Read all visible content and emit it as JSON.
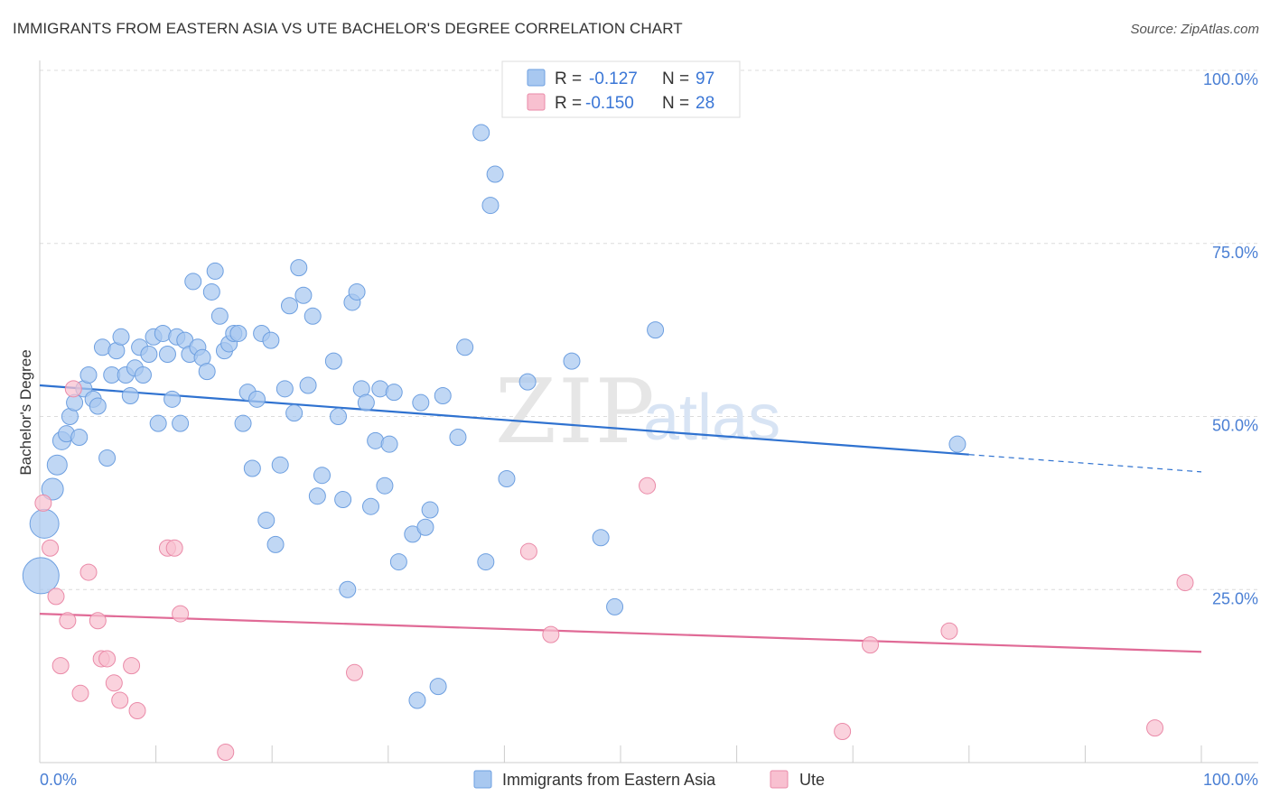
{
  "header": {
    "title": "IMMIGRANTS FROM EASTERN ASIA VS UTE BACHELOR'S DEGREE CORRELATION CHART",
    "source": "Source: ZipAtlas.com"
  },
  "watermark": {
    "zip": "ZIP",
    "atlas": "atlas"
  },
  "chart_data": {
    "type": "scatter",
    "ylabel": "Bachelor's Degree",
    "x_tick_labels": [
      "0.0%",
      "100.0%"
    ],
    "y_tick_labels": [
      "25.0%",
      "50.0%",
      "75.0%",
      "100.0%"
    ],
    "y_ticks": [
      25,
      50,
      75,
      100
    ],
    "xlim": [
      0,
      100
    ],
    "ylim": [
      0,
      100
    ],
    "grid": true,
    "legend_position": "bottom",
    "stats": [
      {
        "r_label": "R =",
        "r_value": "-0.127",
        "n_label": "N =",
        "n_value": "97"
      },
      {
        "r_label": "R =",
        "r_value": "-0.150",
        "n_label": "N =",
        "n_value": "28"
      }
    ],
    "series": [
      {
        "name": "Immigrants from Eastern Asia",
        "color": "#a8c8f0",
        "stroke": "#6d9fe0",
        "line_color": "#2f72d0",
        "trend": {
          "x0": 0,
          "y0": 54.5,
          "x1": 80,
          "y1": 44.5,
          "dash_x1": 100,
          "dash_y1": 42.0
        },
        "points": [
          [
            0.1,
            27.0,
            20
          ],
          [
            0.4,
            34.5,
            16
          ],
          [
            1.1,
            39.5,
            12
          ],
          [
            1.5,
            43.0,
            11
          ],
          [
            1.9,
            46.5,
            10
          ],
          [
            2.3,
            47.5,
            9
          ],
          [
            2.6,
            50.0,
            9
          ],
          [
            3.0,
            52.0,
            9
          ],
          [
            3.4,
            47.0,
            9
          ],
          [
            3.8,
            54.0,
            9
          ],
          [
            4.2,
            56.0,
            9
          ],
          [
            4.6,
            52.5,
            9
          ],
          [
            5.0,
            51.5,
            9
          ],
          [
            5.4,
            60.0,
            9
          ],
          [
            5.8,
            44.0,
            9
          ],
          [
            6.2,
            56.0,
            9
          ],
          [
            6.6,
            59.5,
            9
          ],
          [
            7.0,
            61.5,
            9
          ],
          [
            7.4,
            56.0,
            9
          ],
          [
            7.8,
            53.0,
            9
          ],
          [
            8.2,
            57.0,
            9
          ],
          [
            8.6,
            60.0,
            9
          ],
          [
            8.9,
            56.0,
            9
          ],
          [
            9.4,
            59.0,
            9
          ],
          [
            9.8,
            61.5,
            9
          ],
          [
            10.2,
            49.0,
            9
          ],
          [
            10.6,
            62.0,
            9
          ],
          [
            11.0,
            59.0,
            9
          ],
          [
            11.4,
            52.5,
            9
          ],
          [
            11.8,
            61.5,
            9
          ],
          [
            12.1,
            49.0,
            9
          ],
          [
            12.5,
            61.0,
            9
          ],
          [
            12.9,
            59.0,
            9
          ],
          [
            13.2,
            69.5,
            9
          ],
          [
            13.6,
            60.0,
            9
          ],
          [
            14.0,
            58.5,
            9
          ],
          [
            14.4,
            56.5,
            9
          ],
          [
            14.8,
            68.0,
            9
          ],
          [
            15.1,
            71.0,
            9
          ],
          [
            15.5,
            64.5,
            9
          ],
          [
            15.9,
            59.5,
            9
          ],
          [
            16.3,
            60.5,
            9
          ],
          [
            16.7,
            62.0,
            9
          ],
          [
            17.1,
            62.0,
            9
          ],
          [
            17.5,
            49.0,
            9
          ],
          [
            17.9,
            53.5,
            9
          ],
          [
            18.3,
            42.5,
            9
          ],
          [
            18.7,
            52.5,
            9
          ],
          [
            19.1,
            62.0,
            9
          ],
          [
            19.5,
            35.0,
            9
          ],
          [
            19.9,
            61.0,
            9
          ],
          [
            20.3,
            31.5,
            9
          ],
          [
            20.7,
            43.0,
            9
          ],
          [
            21.1,
            54.0,
            9
          ],
          [
            21.5,
            66.0,
            9
          ],
          [
            21.9,
            50.5,
            9
          ],
          [
            22.3,
            71.5,
            9
          ],
          [
            22.7,
            67.5,
            9
          ],
          [
            23.1,
            54.5,
            9
          ],
          [
            23.5,
            64.5,
            9
          ],
          [
            23.9,
            38.5,
            9
          ],
          [
            24.3,
            41.5,
            9
          ],
          [
            25.3,
            58.0,
            9
          ],
          [
            25.7,
            50.0,
            9
          ],
          [
            26.1,
            38.0,
            9
          ],
          [
            26.5,
            25.0,
            9
          ],
          [
            26.9,
            66.5,
            9
          ],
          [
            27.3,
            68.0,
            9
          ],
          [
            27.7,
            54.0,
            9
          ],
          [
            28.1,
            52.0,
            9
          ],
          [
            28.5,
            37.0,
            9
          ],
          [
            28.9,
            46.5,
            9
          ],
          [
            29.3,
            54.0,
            9
          ],
          [
            29.7,
            40.0,
            9
          ],
          [
            30.1,
            46.0,
            9
          ],
          [
            30.5,
            53.5,
            9
          ],
          [
            30.9,
            29.0,
            9
          ],
          [
            32.1,
            33.0,
            9
          ],
          [
            32.5,
            9.0,
            9
          ],
          [
            32.8,
            52.0,
            9
          ],
          [
            33.2,
            34.0,
            9
          ],
          [
            33.6,
            36.5,
            9
          ],
          [
            34.3,
            11.0,
            9
          ],
          [
            34.7,
            53.0,
            9
          ],
          [
            36.0,
            47.0,
            9
          ],
          [
            36.6,
            60.0,
            9
          ],
          [
            38.0,
            91.0,
            9
          ],
          [
            38.4,
            29.0,
            9
          ],
          [
            38.8,
            80.5,
            9
          ],
          [
            39.2,
            85.0,
            9
          ],
          [
            40.2,
            41.0,
            9
          ],
          [
            42.0,
            55.0,
            9
          ],
          [
            45.8,
            58.0,
            9
          ],
          [
            48.3,
            32.5,
            9
          ],
          [
            49.5,
            22.5,
            9
          ],
          [
            53.0,
            62.5,
            9
          ],
          [
            79.0,
            46.0,
            9
          ]
        ]
      },
      {
        "name": "Ute",
        "color": "#f8c0d0",
        "stroke": "#ea8aa8",
        "line_color": "#e06a96",
        "trend": {
          "x0": 0,
          "y0": 21.5,
          "x1": 100,
          "y1": 16.0
        },
        "points": [
          [
            0.3,
            37.5,
            9
          ],
          [
            0.9,
            31.0,
            9
          ],
          [
            1.4,
            24.0,
            9
          ],
          [
            1.8,
            14.0,
            9
          ],
          [
            2.4,
            20.5,
            9
          ],
          [
            2.9,
            54.0,
            9
          ],
          [
            3.5,
            10.0,
            9
          ],
          [
            4.2,
            27.5,
            9
          ],
          [
            5.0,
            20.5,
            9
          ],
          [
            5.3,
            15.0,
            9
          ],
          [
            5.8,
            15.0,
            9
          ],
          [
            6.4,
            11.5,
            9
          ],
          [
            6.9,
            9.0,
            9
          ],
          [
            7.9,
            14.0,
            9
          ],
          [
            8.4,
            7.5,
            9
          ],
          [
            11.0,
            31.0,
            9
          ],
          [
            11.6,
            31.0,
            9
          ],
          [
            12.1,
            21.5,
            9
          ],
          [
            16.0,
            1.5,
            9
          ],
          [
            27.1,
            13.0,
            9
          ],
          [
            42.1,
            30.5,
            9
          ],
          [
            44.0,
            18.5,
            9
          ],
          [
            52.3,
            40.0,
            9
          ],
          [
            69.1,
            4.5,
            9
          ],
          [
            71.5,
            17.0,
            9
          ],
          [
            78.3,
            19.0,
            9
          ],
          [
            96.0,
            5.0,
            9
          ],
          [
            98.6,
            26.0,
            9
          ]
        ]
      }
    ]
  }
}
